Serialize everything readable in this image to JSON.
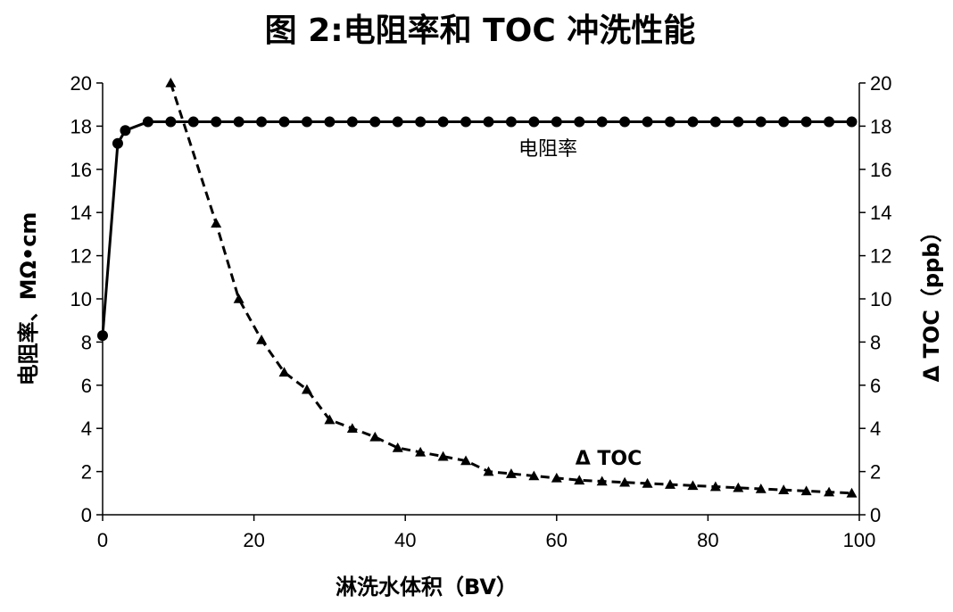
{
  "chart_data": {
    "type": "line",
    "title": "图 2:电阻率和 TOC 冲洗性能",
    "xlabel": "淋洗水体积（BV）",
    "ylabel": "电阻率、MΩ•cm",
    "y2label": "Δ TOC（ppb）",
    "xlim": [
      0,
      100
    ],
    "ylim": [
      0,
      20
    ],
    "y2lim": [
      0,
      20
    ],
    "x_ticks": [
      0,
      20,
      40,
      60,
      80,
      100
    ],
    "y_ticks": [
      0,
      2,
      4,
      6,
      8,
      10,
      12,
      14,
      16,
      18,
      20
    ],
    "grid": false,
    "series": [
      {
        "name": "电阻率",
        "axis": "left",
        "line_style": "solid",
        "marker": "circle",
        "color": "#000000",
        "x": [
          0,
          2,
          3,
          6,
          9,
          12,
          15,
          18,
          21,
          24,
          27,
          30,
          33,
          36,
          39,
          42,
          45,
          48,
          51,
          54,
          57,
          60,
          63,
          66,
          69,
          72,
          75,
          78,
          81,
          84,
          87,
          90,
          93,
          96,
          99
        ],
        "y": [
          8.3,
          17.2,
          17.8,
          18.2,
          18.2,
          18.2,
          18.2,
          18.2,
          18.2,
          18.2,
          18.2,
          18.2,
          18.2,
          18.2,
          18.2,
          18.2,
          18.2,
          18.2,
          18.2,
          18.2,
          18.2,
          18.2,
          18.2,
          18.2,
          18.2,
          18.2,
          18.2,
          18.2,
          18.2,
          18.2,
          18.2,
          18.2,
          18.2,
          18.2,
          18.2
        ]
      },
      {
        "name": "Δ TOC",
        "axis": "right",
        "line_style": "dashed",
        "marker": "triangle",
        "color": "#000000",
        "x": [
          9,
          15,
          18,
          21,
          24,
          27,
          30,
          33,
          36,
          39,
          42,
          45,
          48,
          51,
          54,
          57,
          60,
          63,
          66,
          69,
          72,
          75,
          78,
          81,
          84,
          87,
          90,
          93,
          96,
          99
        ],
        "y": [
          20,
          13.5,
          10,
          8.1,
          6.6,
          5.8,
          4.4,
          4.0,
          3.6,
          3.1,
          2.9,
          2.7,
          2.5,
          2.0,
          1.9,
          1.8,
          1.7,
          1.6,
          1.55,
          1.5,
          1.45,
          1.4,
          1.35,
          1.3,
          1.25,
          1.2,
          1.15,
          1.1,
          1.05,
          1.0
        ]
      }
    ],
    "annotations": [
      "电阻率",
      "Δ TOC"
    ]
  }
}
